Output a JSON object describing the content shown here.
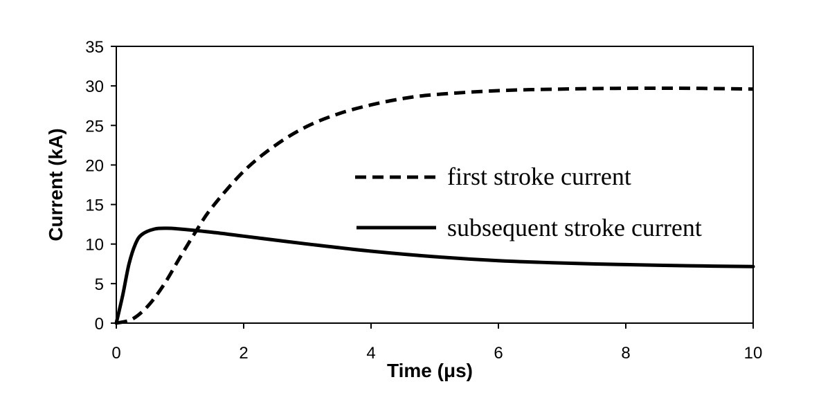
{
  "chart_data": {
    "type": "line",
    "title": "",
    "xlabel": "Time (μs)",
    "ylabel": "Current (kA)",
    "xlim": [
      0,
      10
    ],
    "ylim": [
      0,
      35
    ],
    "x_ticks": [
      0,
      2,
      4,
      6,
      8,
      10
    ],
    "y_ticks": [
      0,
      5,
      10,
      15,
      20,
      25,
      30,
      35
    ],
    "x_tick_labels": [
      "0",
      "2",
      "4",
      "6",
      "8",
      "10"
    ],
    "y_tick_labels": [
      "0",
      "5",
      "10",
      "15",
      "20",
      "25",
      "30",
      "35"
    ],
    "grid": false,
    "legend_position": "center-right",
    "series": [
      {
        "name": "first stroke current",
        "line_style": "dashed",
        "color": "#000000",
        "x": [
          0,
          0.25,
          0.5,
          0.75,
          1.0,
          1.25,
          1.5,
          2.0,
          2.5,
          3.0,
          3.5,
          4.0,
          4.5,
          5.0,
          6.0,
          7.0,
          8.0,
          9.0,
          10.0
        ],
        "y": [
          0,
          0.5,
          2.2,
          4.9,
          8.3,
          11.6,
          14.6,
          19.2,
          22.5,
          24.9,
          26.5,
          27.6,
          28.4,
          28.9,
          29.4,
          29.6,
          29.7,
          29.7,
          29.6
        ]
      },
      {
        "name": "subsequent stroke current",
        "line_style": "solid",
        "color": "#000000",
        "x": [
          0,
          0.1,
          0.2,
          0.3,
          0.4,
          0.6,
          0.8,
          1.0,
          1.5,
          2.0,
          3.0,
          4.0,
          5.0,
          6.0,
          7.0,
          8.0,
          9.0,
          10.0
        ],
        "y": [
          0,
          3.5,
          7.5,
          10.0,
          11.2,
          11.9,
          12.0,
          11.9,
          11.5,
          11.0,
          10.0,
          9.1,
          8.4,
          7.9,
          7.6,
          7.4,
          7.25,
          7.15
        ]
      }
    ]
  }
}
